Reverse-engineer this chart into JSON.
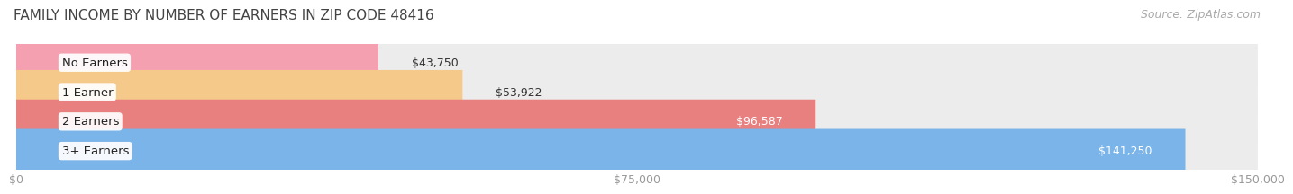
{
  "title": "FAMILY INCOME BY NUMBER OF EARNERS IN ZIP CODE 48416",
  "source": "Source: ZipAtlas.com",
  "categories": [
    "No Earners",
    "1 Earner",
    "2 Earners",
    "3+ Earners"
  ],
  "values": [
    43750,
    53922,
    96587,
    141250
  ],
  "bar_colors": [
    "#f4a0b0",
    "#f5c98a",
    "#e88080",
    "#7ab4e8"
  ],
  "label_colors": [
    "#333333",
    "#333333",
    "#ffffff",
    "#ffffff"
  ],
  "value_inside": [
    false,
    false,
    true,
    true
  ],
  "xlim": [
    0,
    150000
  ],
  "xticks": [
    0,
    75000,
    150000
  ],
  "xtick_labels": [
    "$0",
    "$75,000",
    "$150,000"
  ],
  "title_fontsize": 11,
  "source_fontsize": 9,
  "label_fontsize": 9.5,
  "value_fontsize": 9,
  "tick_fontsize": 9,
  "background_color": "#ffffff",
  "bar_background_color": "#ececec"
}
